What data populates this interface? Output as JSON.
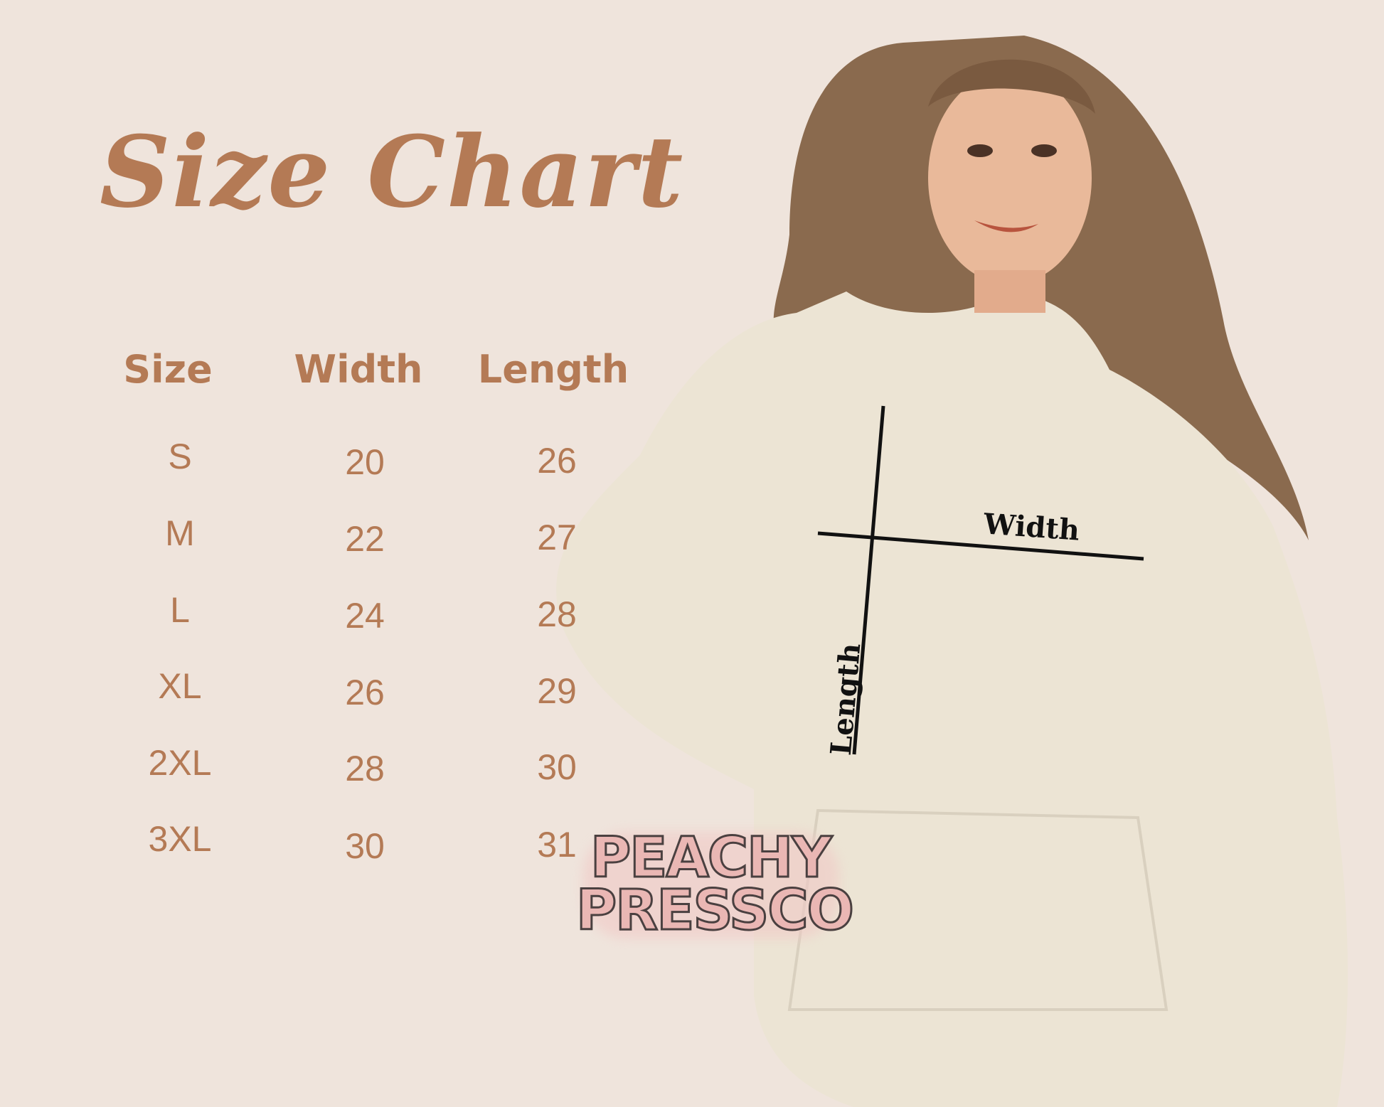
{
  "title": "Size Chart",
  "table": {
    "headers": [
      "Size",
      "Width",
      "Length"
    ],
    "rows": [
      {
        "size": "S",
        "width": "20",
        "length": "26"
      },
      {
        "size": "M",
        "width": "22",
        "length": "27"
      },
      {
        "size": "L",
        "width": "24",
        "length": "28"
      },
      {
        "size": "XL",
        "width": "26",
        "length": "29"
      },
      {
        "size": "2XL",
        "width": "28",
        "length": "30"
      },
      {
        "size": "3XL",
        "width": "30",
        "length": "31"
      }
    ]
  },
  "diagram": {
    "width_label": "Width",
    "length_label": "Length"
  },
  "watermark": {
    "line1": "PEACHY",
    "line2": "PRESSCO"
  },
  "colors": {
    "background": "#efe4dc",
    "accent": "#b47a55",
    "watermark": "#eab7b4",
    "hoodie": "#ece4d4"
  }
}
